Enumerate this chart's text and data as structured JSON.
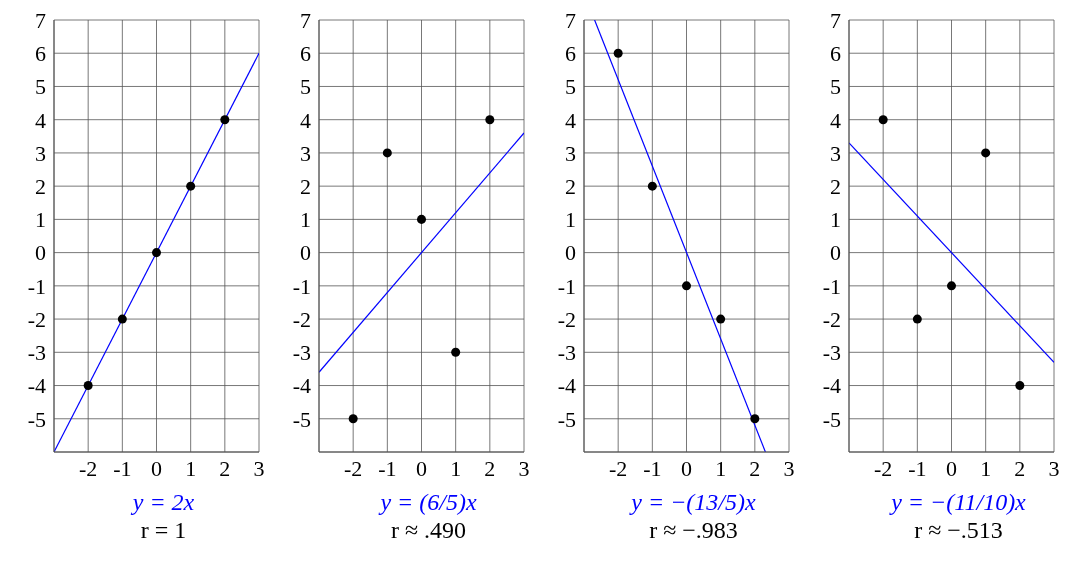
{
  "chart_data": [
    {
      "type": "scatter",
      "xlim": [
        -3,
        3
      ],
      "ylim": [
        -6,
        7
      ],
      "xticks": [
        -2,
        -1,
        0,
        1,
        2,
        3
      ],
      "yticks": [
        -5,
        -4,
        -3,
        -2,
        -1,
        0,
        1,
        2,
        3,
        4,
        5,
        6,
        7
      ],
      "grid": true,
      "marker": "circle",
      "legend": "bottom",
      "annotations": [
        "r = 1"
      ],
      "series": [
        {
          "color": "#000000",
          "x": [
            -2,
            -1,
            0,
            1,
            2
          ],
          "values": [
            -4,
            -2,
            0,
            2,
            4
          ]
        },
        {
          "type": "line",
          "name": "y = 2x",
          "color": "#0000ff",
          "marker": "none",
          "x": [
            -3,
            3
          ],
          "values": [
            -6,
            6
          ]
        }
      ]
    },
    {
      "type": "scatter",
      "xlim": [
        -3,
        3
      ],
      "ylim": [
        -6,
        7
      ],
      "xticks": [
        -2,
        -1,
        0,
        1,
        2,
        3
      ],
      "yticks": [
        -5,
        -4,
        -3,
        -2,
        -1,
        0,
        1,
        2,
        3,
        4,
        5,
        6,
        7
      ],
      "grid": true,
      "marker": "circle",
      "legend": "bottom",
      "annotations": [
        "r ≈ .490"
      ],
      "series": [
        {
          "color": "#000000",
          "x": [
            -2,
            -1,
            0,
            1,
            2
          ],
          "values": [
            -5,
            3,
            1,
            -3,
            4
          ]
        },
        {
          "type": "line",
          "name": "y = (6/5)x",
          "color": "#0000ff",
          "marker": "none",
          "x": [
            -3,
            3
          ],
          "values": [
            -3.6,
            3.6
          ]
        }
      ]
    },
    {
      "type": "scatter",
      "xlim": [
        -3,
        3
      ],
      "ylim": [
        -6,
        7
      ],
      "xticks": [
        -2,
        -1,
        0,
        1,
        2,
        3
      ],
      "yticks": [
        -5,
        -4,
        -3,
        -2,
        -1,
        0,
        1,
        2,
        3,
        4,
        5,
        6,
        7
      ],
      "grid": true,
      "marker": "circle",
      "legend": "bottom",
      "annotations": [
        "r ≈ −.983"
      ],
      "series": [
        {
          "color": "#000000",
          "x": [
            -2,
            -1,
            0,
            1,
            2
          ],
          "values": [
            6,
            2,
            -1,
            -2,
            -5
          ]
        },
        {
          "type": "line",
          "name": "y = −(13/5)x",
          "color": "#0000ff",
          "marker": "none",
          "x": [
            -2.69,
            2.31
          ],
          "values": [
            7,
            -6
          ]
        }
      ]
    },
    {
      "type": "scatter",
      "xlim": [
        -3,
        3
      ],
      "ylim": [
        -6,
        7
      ],
      "xticks": [
        -2,
        -1,
        0,
        1,
        2,
        3
      ],
      "yticks": [
        -5,
        -4,
        -3,
        -2,
        -1,
        0,
        1,
        2,
        3,
        4,
        5,
        6,
        7
      ],
      "grid": true,
      "marker": "circle",
      "legend": "bottom",
      "annotations": [
        "r ≈ −.513"
      ],
      "series": [
        {
          "color": "#000000",
          "x": [
            -2,
            -1,
            0,
            1,
            2
          ],
          "values": [
            4,
            -2,
            -1,
            3,
            -4
          ]
        },
        {
          "type": "line",
          "name": "y = −(11/10)x",
          "color": "#0000ff",
          "marker": "none",
          "x": [
            -3,
            3
          ],
          "values": [
            3.3,
            -3.3
          ]
        }
      ]
    }
  ]
}
